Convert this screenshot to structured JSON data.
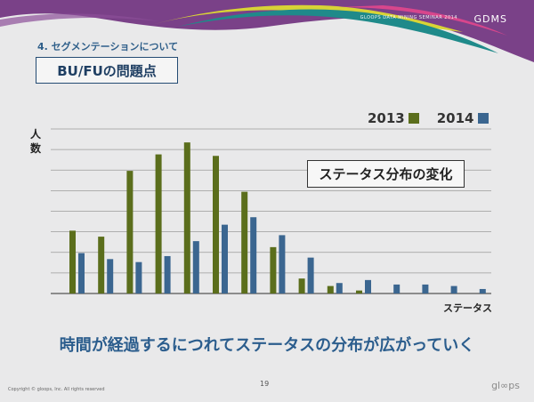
{
  "header": {
    "event_text": "GLOOPS DATA MINING SEMINAR 2014",
    "logo": "GDMS"
  },
  "section_title": "4. セグメンテーションについて",
  "slide_title": "BU/FUの問題点",
  "annotation": "ステータス分布の変化",
  "caption": "時間が経過するにつれてステータスの分布が広がっていく",
  "page_number": "19",
  "copyright": "Copyright © gloops, Inc.  All rights reserved",
  "footer_logo": "gl∞ps",
  "colors": {
    "series_2013": "#5b6e1c",
    "series_2014": "#3b6690",
    "title_blue": "#2b5d8d"
  },
  "chart_data": {
    "type": "bar",
    "ylabel": "人数",
    "xlabel": "ステータス",
    "x_count": 15,
    "ylim": [
      0,
      100
    ],
    "grid": true,
    "legend_position": "top-right",
    "series": [
      {
        "name": "2013",
        "values": [
          42,
          38,
          82,
          93,
          101,
          92,
          68,
          31,
          10,
          5,
          2,
          0,
          0,
          0,
          0
        ]
      },
      {
        "name": "2014",
        "values": [
          27,
          23,
          21,
          25,
          35,
          46,
          51,
          39,
          24,
          7,
          9,
          6,
          6,
          5,
          3
        ]
      }
    ]
  }
}
